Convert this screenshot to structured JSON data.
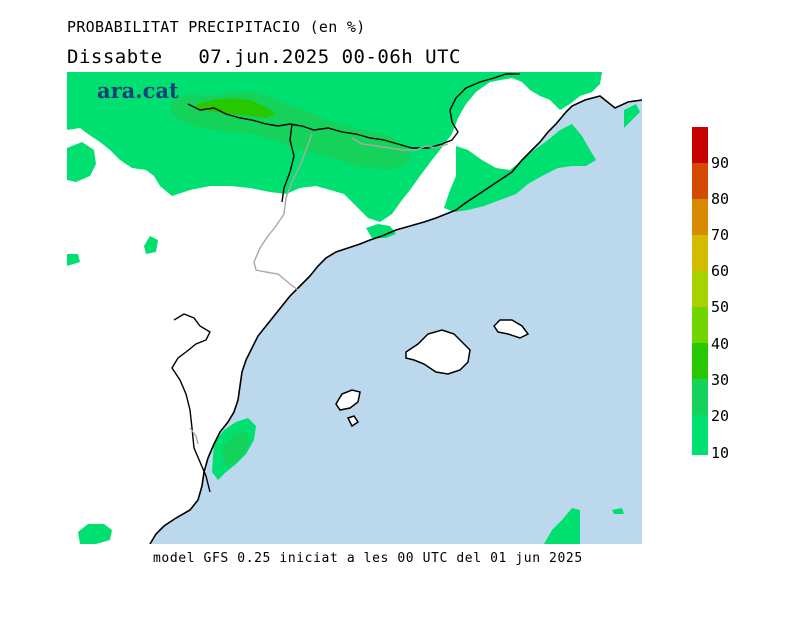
{
  "header": {
    "title": "PROBABILITAT PRECIPITACIO (en %)",
    "subtitle": "Dissabte   07.jun.2025 00-06h UTC"
  },
  "brand": {
    "logo_text": "ara.cat",
    "color": "#1e3d7a"
  },
  "footer": {
    "text": "model GFS 0.25 iniciat a les 00 UTC del 01 jun 2025"
  },
  "map": {
    "sea_color": "#bcd8ec",
    "land_color": "#ffffff",
    "coast_color": "#000000",
    "border_color": "#a8a8a8"
  },
  "legend": {
    "labels": [
      "90",
      "80",
      "70",
      "60",
      "50",
      "40",
      "30",
      "20",
      "10"
    ],
    "bands": [
      {
        "min": 90,
        "color": "#c80000"
      },
      {
        "min": 80,
        "color": "#d44a00"
      },
      {
        "min": 70,
        "color": "#d88a00"
      },
      {
        "min": 60,
        "color": "#d4bb00"
      },
      {
        "min": 50,
        "color": "#a8d100"
      },
      {
        "min": 40,
        "color": "#6fd400"
      },
      {
        "min": 30,
        "color": "#28c800"
      },
      {
        "min": 20,
        "color": "#14d25a"
      },
      {
        "min": 10,
        "color": "#00e070"
      }
    ]
  }
}
